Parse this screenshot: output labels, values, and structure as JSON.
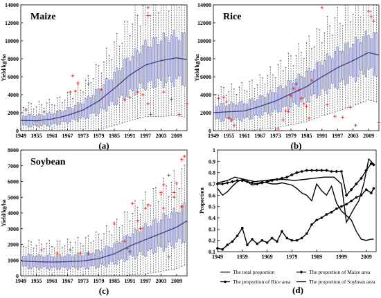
{
  "colors": {
    "box": "#7b7fb8",
    "whisker": "#333333",
    "outlier": "#e4221d",
    "trend": "#3d3d8a",
    "line": "#000000"
  },
  "chart_data": [
    {
      "type": "box",
      "title": "Maize",
      "panel_label": "(a)",
      "ylabel": "Yield/kg/ha",
      "xlim": [
        1949,
        2013
      ],
      "ylim": [
        0,
        14000
      ],
      "x_ticks": [
        "1949",
        "1955",
        "1961",
        "1967",
        "1973",
        "1979",
        "1985",
        "1991",
        "1997",
        "2003",
        "2009"
      ],
      "y_ticks": [
        0,
        2000,
        4000,
        6000,
        8000,
        10000,
        12000,
        14000
      ],
      "trend": {
        "x": [
          1949,
          1955,
          1961,
          1967,
          1973,
          1979,
          1985,
          1991,
          1997,
          2003,
          2009,
          2013
        ],
        "y": [
          1150,
          1100,
          1300,
          1700,
          2300,
          3300,
          4700,
          6200,
          7300,
          7800,
          8100,
          7900
        ]
      },
      "spread": [
        650,
        650,
        700,
        800,
        1000,
        1400,
        1800,
        2200,
        2500,
        2700,
        2800,
        2800
      ],
      "outliers": [
        [
          1951,
          2300
        ],
        [
          1958,
          2100
        ],
        [
          1968,
          4300
        ],
        [
          1969,
          6100
        ],
        [
          1970,
          4400
        ],
        [
          1971,
          5300
        ],
        [
          1975,
          5200
        ],
        [
          1980,
          4600
        ],
        [
          1989,
          3400
        ],
        [
          1991,
          3700
        ],
        [
          1994,
          4300
        ],
        [
          1996,
          4000
        ],
        [
          1998,
          12800
        ],
        [
          1998,
          13700
        ],
        [
          1998,
          3000
        ],
        [
          1999,
          1800
        ],
        [
          2004,
          4300
        ],
        [
          2007,
          3500
        ],
        [
          2010,
          1800
        ],
        [
          2013,
          3000
        ]
      ]
    },
    {
      "type": "box",
      "title": "Rice",
      "panel_label": "(b)",
      "ylabel": "Yield/kg/ha",
      "xlim": [
        1949,
        2013
      ],
      "ylim": [
        0,
        14000
      ],
      "x_ticks": [
        "1949",
        "1955",
        "1961",
        "1967",
        "1973",
        "1979",
        "1985",
        "1991",
        "1997",
        "2003",
        "2009"
      ],
      "y_ticks": [
        0,
        2000,
        4000,
        6000,
        8000,
        10000,
        12000,
        14000
      ],
      "trend": {
        "x": [
          1949,
          1955,
          1961,
          1967,
          1973,
          1979,
          1985,
          1991,
          1997,
          2003,
          2009,
          2013
        ],
        "y": [
          2000,
          2100,
          2200,
          2700,
          3300,
          4100,
          4900,
          6000,
          7000,
          7800,
          8700,
          8400
        ]
      },
      "spread": [
        900,
        950,
        1000,
        1100,
        1300,
        1500,
        1700,
        1900,
        2100,
        2200,
        2300,
        2300
      ],
      "outliers": [
        [
          1951,
          3600
        ],
        [
          1953,
          3700
        ],
        [
          1954,
          3200
        ],
        [
          1955,
          1400
        ],
        [
          1956,
          1200
        ],
        [
          1957,
          600
        ],
        [
          1974,
          200
        ],
        [
          1976,
          1200
        ],
        [
          1977,
          2200
        ],
        [
          1978,
          2100
        ],
        [
          1979,
          3900
        ],
        [
          1980,
          4700
        ],
        [
          1981,
          5200
        ],
        [
          1982,
          4500
        ],
        [
          1983,
          3600
        ],
        [
          1984,
          3000
        ],
        [
          1985,
          2700
        ],
        [
          1986,
          1400
        ],
        [
          1987,
          5600
        ],
        [
          1991,
          13700
        ],
        [
          1993,
          2900
        ],
        [
          1996,
          1600
        ],
        [
          1999,
          1500
        ],
        [
          2002,
          2600
        ],
        [
          2004,
          600
        ],
        [
          2009,
          13300
        ],
        [
          2010,
          12700
        ],
        [
          2011,
          12200
        ],
        [
          2013,
          900
        ]
      ]
    },
    {
      "type": "box",
      "title": "Soybean",
      "panel_label": "(c)",
      "ylabel": "Yield/kg/ha",
      "xlim": [
        1949,
        2013
      ],
      "ylim": [
        0,
        8000
      ],
      "x_ticks": [
        "1949",
        "1955",
        "1961",
        "1967",
        "1973",
        "1979",
        "1985",
        "1991",
        "1997",
        "2003",
        "2009"
      ],
      "y_ticks": [
        0,
        1000,
        2000,
        3000,
        4000,
        5000,
        6000,
        7000,
        8000
      ],
      "trend": {
        "x": [
          1949,
          1955,
          1961,
          1967,
          1973,
          1979,
          1985,
          1991,
          1997,
          2003,
          2009,
          2013
        ],
        "y": [
          950,
          900,
          880,
          900,
          950,
          1100,
          1400,
          1900,
          2300,
          2700,
          3100,
          3500
        ]
      },
      "spread": [
        420,
        430,
        430,
        450,
        480,
        550,
        650,
        800,
        950,
        1050,
        1150,
        1200
      ],
      "outliers": [
        [
          1957,
          1650
        ],
        [
          1963,
          1450
        ],
        [
          1968,
          1650
        ],
        [
          1972,
          1450
        ],
        [
          1975,
          1400
        ],
        [
          1985,
          3350
        ],
        [
          1989,
          2200
        ],
        [
          1990,
          1750
        ],
        [
          1991,
          1550
        ],
        [
          1992,
          4600
        ],
        [
          1994,
          3500
        ],
        [
          1995,
          3000
        ],
        [
          1997,
          4300
        ],
        [
          1998,
          4500
        ],
        [
          2003,
          5300
        ],
        [
          2004,
          5800
        ],
        [
          2004,
          4300
        ],
        [
          2006,
          6400
        ],
        [
          2006,
          1200
        ],
        [
          2008,
          5300
        ],
        [
          2008,
          5000
        ],
        [
          2009,
          5900
        ],
        [
          2011,
          7400
        ],
        [
          2012,
          7600
        ],
        [
          2011,
          4400
        ]
      ]
    },
    {
      "type": "line",
      "panel_label": "(d)",
      "ylabel": "Proportion",
      "xlim": [
        1949,
        2013
      ],
      "ylim": [
        0.1,
        1.0
      ],
      "x_ticks": [
        "1949",
        "1959",
        "1969",
        "1979",
        "1989",
        "1999",
        "2009"
      ],
      "y_ticks": [
        "0.1",
        "0.2",
        "0.3",
        "0.4",
        "0.5",
        "0.6",
        "0.7",
        "0.8",
        "0.9",
        "1"
      ],
      "series": [
        {
          "name": "The total proportion",
          "marker": "none",
          "x": [
            1949,
            1953,
            1956,
            1960,
            1964,
            1968,
            1972,
            1976,
            1980,
            1984,
            1988,
            1992,
            1996,
            1999,
            2001,
            2004,
            2006,
            2008,
            2010,
            2011,
            2012
          ],
          "y": [
            0.71,
            0.73,
            0.76,
            0.74,
            0.72,
            0.73,
            0.74,
            0.74,
            0.73,
            0.74,
            0.75,
            0.76,
            0.76,
            0.7,
            0.36,
            0.48,
            0.55,
            0.7,
            0.92,
            0.9,
            0.87
          ]
        },
        {
          "name": "The proportion of Maize area",
          "marker": "diamond",
          "x": [
            1949,
            1951,
            1953,
            1955,
            1957,
            1959,
            1961,
            1963,
            1965,
            1967,
            1969,
            1971,
            1973,
            1975,
            1977,
            1979,
            1981,
            1983,
            1985,
            1987,
            1989,
            1991,
            1993,
            1995,
            1997,
            1999,
            2001,
            2003,
            2005,
            2007,
            2009,
            2011,
            2012
          ],
          "y": [
            0.7,
            0.7,
            0.71,
            0.72,
            0.73,
            0.73,
            0.72,
            0.71,
            0.7,
            0.71,
            0.72,
            0.73,
            0.74,
            0.75,
            0.76,
            0.78,
            0.8,
            0.81,
            0.82,
            0.82,
            0.82,
            0.82,
            0.82,
            0.81,
            0.81,
            0.81,
            0.6,
            0.65,
            0.7,
            0.75,
            0.82,
            0.88,
            0.87
          ]
        },
        {
          "name": "The proportion of Rice area",
          "marker": "circle",
          "x": [
            1949,
            1951,
            1953,
            1955,
            1957,
            1959,
            1961,
            1963,
            1965,
            1967,
            1969,
            1971,
            1973,
            1975,
            1977,
            1979,
            1981,
            1983,
            1985,
            1987,
            1989,
            1991,
            1993,
            1995,
            1997,
            1999,
            2001,
            2003,
            2005,
            2007,
            2009,
            2011,
            2012
          ],
          "y": [
            0.13,
            0.12,
            0.16,
            0.19,
            0.24,
            0.31,
            0.16,
            0.21,
            0.17,
            0.2,
            0.18,
            0.22,
            0.19,
            0.28,
            0.22,
            0.2,
            0.2,
            0.22,
            0.26,
            0.34,
            0.38,
            0.4,
            0.43,
            0.45,
            0.48,
            0.5,
            0.52,
            0.55,
            0.58,
            0.6,
            0.65,
            0.62,
            0.66
          ]
        },
        {
          "name": "The proportion of Soybean area",
          "marker": "none",
          "x": [
            1949,
            1951,
            1953,
            1955,
            1957,
            1959,
            1961,
            1963,
            1965,
            1967,
            1969,
            1971,
            1973,
            1975,
            1977,
            1979,
            1981,
            1983,
            1985,
            1987,
            1989,
            1991,
            1993,
            1995,
            1997,
            1999,
            2001,
            2003,
            2005,
            2007,
            2009,
            2011,
            2012
          ],
          "y": [
            0.66,
            0.6,
            0.63,
            0.68,
            0.72,
            0.74,
            0.72,
            0.69,
            0.7,
            0.72,
            0.71,
            0.7,
            0.7,
            0.71,
            0.7,
            0.69,
            0.66,
            0.62,
            0.6,
            0.55,
            0.7,
            0.64,
            0.6,
            0.68,
            0.53,
            0.46,
            0.42,
            0.38,
            0.28,
            0.21,
            0.2,
            0.21,
            0.21
          ]
        }
      ]
    }
  ]
}
